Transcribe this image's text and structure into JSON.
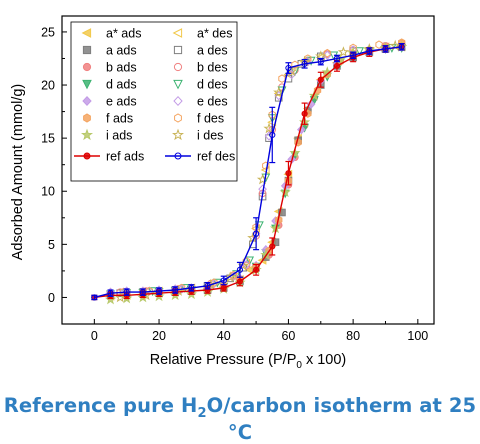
{
  "caption": {
    "prefix": "Reference pure H",
    "sub": "2",
    "suffix": "O/carbon isotherm at 25 °C",
    "color": "#2f7fc1"
  },
  "chart_data": {
    "type": "scatter",
    "xlabel_main": "Relative Pressure (P/P",
    "xlabel_sub": "0",
    "xlabel_end": " x 100)",
    "ylabel": "Adsorbed Amount (mmol/g)",
    "xlim": [
      -10,
      105
    ],
    "ylim": [
      -2.5,
      26.5
    ],
    "x_ticks": [
      0,
      20,
      40,
      60,
      80,
      100
    ],
    "y_ticks": [
      0,
      5,
      10,
      15,
      20,
      25
    ],
    "legend_position": "top-left",
    "series": [
      {
        "name": "a* ads",
        "marker": "tri-left",
        "filled": true,
        "color": "#f2c94c",
        "x": [
          5,
          10,
          15,
          20,
          25,
          30,
          35,
          40,
          45,
          48,
          52,
          55,
          57,
          60,
          63,
          66,
          70,
          75,
          80,
          85,
          90,
          95
        ],
        "y": [
          0.1,
          0.2,
          0.3,
          0.4,
          0.5,
          0.6,
          0.8,
          1.0,
          1.7,
          2.6,
          3.5,
          5.2,
          8.1,
          11.6,
          15.0,
          17.8,
          20.5,
          22.1,
          22.8,
          23.2,
          23.5,
          23.6
        ]
      },
      {
        "name": "a* des",
        "marker": "tri-left",
        "filled": false,
        "color": "#f2c94c",
        "x": [
          90,
          80,
          70,
          65,
          60,
          57,
          55,
          53,
          50,
          47,
          44,
          40,
          30,
          20,
          10
        ],
        "y": [
          23.6,
          23.2,
          22.6,
          22.2,
          21.0,
          19.2,
          16.5,
          12.0,
          6.5,
          3.2,
          2.0,
          1.4,
          0.9,
          0.6,
          0.4
        ]
      },
      {
        "name": "a ads",
        "marker": "square",
        "filled": true,
        "color": "#7f7f7f",
        "x": [
          5,
          10,
          15,
          20,
          25,
          30,
          35,
          40,
          45,
          50,
          53,
          56,
          58,
          60,
          63,
          66,
          70,
          75,
          80,
          85,
          90,
          95
        ],
        "y": [
          0.2,
          0.3,
          0.35,
          0.4,
          0.5,
          0.6,
          0.7,
          0.9,
          1.5,
          2.8,
          3.8,
          5.2,
          8.0,
          11.0,
          14.8,
          17.6,
          20.0,
          21.8,
          22.6,
          23.1,
          23.4,
          23.6
        ]
      },
      {
        "name": "a des",
        "marker": "square",
        "filled": false,
        "color": "#7f7f7f",
        "x": [
          90,
          80,
          70,
          64,
          60,
          57,
          54,
          52,
          49,
          46,
          42,
          35,
          25,
          15,
          8
        ],
        "y": [
          23.5,
          23.2,
          22.7,
          22.0,
          20.6,
          18.8,
          15.0,
          9.5,
          5.0,
          2.8,
          1.8,
          1.1,
          0.7,
          0.5,
          0.4
        ]
      },
      {
        "name": "b ads",
        "marker": "circle",
        "filled": true,
        "color": "#f08080",
        "x": [
          5,
          10,
          15,
          20,
          25,
          30,
          35,
          40,
          45,
          50,
          54,
          57,
          60,
          62,
          65,
          68,
          72,
          76,
          80,
          85,
          90,
          95
        ],
        "y": [
          0.4,
          0.5,
          0.5,
          0.6,
          0.7,
          0.8,
          0.9,
          1.1,
          1.6,
          2.7,
          4.0,
          6.8,
          10.6,
          13.2,
          16.2,
          18.8,
          21.0,
          22.3,
          22.9,
          23.3,
          23.5,
          23.7
        ]
      },
      {
        "name": "b des",
        "marker": "circle",
        "filled": false,
        "color": "#f08080",
        "x": [
          90,
          80,
          72,
          66,
          62,
          58,
          55,
          52,
          50,
          47,
          43,
          36,
          26,
          16,
          8
        ],
        "y": [
          23.7,
          23.3,
          22.9,
          22.3,
          21.4,
          19.8,
          15.8,
          9.8,
          5.8,
          3.0,
          2.0,
          1.3,
          0.8,
          0.6,
          0.5
        ]
      },
      {
        "name": "d ads",
        "marker": "tri-down",
        "filled": true,
        "color": "#3cb371",
        "x": [
          5,
          10,
          15,
          20,
          25,
          30,
          35,
          40,
          45,
          50,
          53,
          56,
          59,
          62,
          65,
          68,
          72,
          76,
          80,
          85,
          90,
          95
        ],
        "y": [
          0.3,
          0.4,
          0.45,
          0.5,
          0.6,
          0.7,
          0.8,
          1.0,
          1.6,
          2.9,
          4.2,
          6.5,
          9.8,
          13.4,
          16.0,
          18.6,
          20.8,
          22.1,
          22.8,
          23.2,
          23.4,
          23.5
        ]
      },
      {
        "name": "d des",
        "marker": "tri-down",
        "filled": false,
        "color": "#3cb371",
        "x": [
          92,
          82,
          74,
          67,
          62,
          58,
          55,
          53,
          51,
          48,
          44,
          38,
          28,
          18,
          9
        ],
        "y": [
          23.5,
          23.2,
          22.8,
          22.3,
          21.3,
          19.5,
          16.9,
          11.3,
          6.8,
          3.5,
          2.2,
          1.4,
          0.9,
          0.6,
          0.4
        ]
      },
      {
        "name": "e ads",
        "marker": "diamond",
        "filled": true,
        "color": "#c39be6",
        "x": [
          5,
          10,
          15,
          20,
          25,
          30,
          35,
          40,
          45,
          50,
          53,
          56,
          59,
          61,
          64,
          67,
          70,
          75,
          80,
          85,
          90,
          95
        ],
        "y": [
          0.5,
          0.6,
          0.6,
          0.7,
          0.8,
          0.9,
          1.0,
          1.2,
          1.8,
          3.0,
          4.5,
          7.2,
          10.5,
          13.0,
          15.8,
          18.2,
          20.4,
          22.0,
          22.7,
          23.1,
          23.4,
          23.6
        ]
      },
      {
        "name": "e des",
        "marker": "diamond",
        "filled": false,
        "color": "#c39be6",
        "x": [
          90,
          80,
          72,
          66,
          61,
          57,
          54,
          52,
          50,
          47,
          43,
          37,
          27,
          17,
          9
        ],
        "y": [
          23.6,
          23.3,
          22.8,
          22.2,
          21.0,
          19.0,
          15.2,
          10.2,
          6.0,
          3.1,
          2.0,
          1.3,
          0.8,
          0.6,
          0.5
        ]
      },
      {
        "name": "f ads",
        "marker": "hexagon",
        "filled": true,
        "color": "#f4a460",
        "x": [
          5,
          10,
          15,
          20,
          25,
          30,
          35,
          40,
          45,
          50,
          54,
          57,
          60,
          63,
          66,
          69,
          72,
          76,
          80,
          85,
          90,
          95
        ],
        "y": [
          0.3,
          0.4,
          0.5,
          0.5,
          0.6,
          0.7,
          0.9,
          1.1,
          1.7,
          2.9,
          4.4,
          7.3,
          11.0,
          14.6,
          17.3,
          19.5,
          21.0,
          22.2,
          22.8,
          23.3,
          23.6,
          23.9
        ]
      },
      {
        "name": "f des",
        "marker": "hexagon",
        "filled": false,
        "color": "#f4a460",
        "x": [
          95,
          88,
          80,
          72,
          66,
          62,
          58,
          55,
          53,
          50,
          47,
          43,
          37,
          27,
          17,
          9
        ],
        "y": [
          24.0,
          23.8,
          23.5,
          23.0,
          22.5,
          21.9,
          20.6,
          17.2,
          12.4,
          6.6,
          3.4,
          2.1,
          1.4,
          0.9,
          0.6,
          0.5
        ]
      },
      {
        "name": "i ads",
        "marker": "star",
        "filled": true,
        "color": "#b8c96a",
        "x": [
          5,
          10,
          15,
          20,
          25,
          30,
          35,
          40,
          45,
          50,
          53,
          56,
          59,
          62,
          65,
          68,
          72,
          76,
          80,
          85,
          90,
          95
        ],
        "y": [
          -0.2,
          -0.1,
          0.0,
          0.1,
          0.2,
          0.3,
          0.5,
          0.8,
          1.4,
          2.6,
          4.0,
          6.5,
          9.9,
          13.6,
          16.5,
          19.0,
          21.2,
          22.4,
          23.0,
          23.3,
          23.5,
          23.6
        ]
      },
      {
        "name": "i des",
        "marker": "star",
        "filled": false,
        "color": "#c9b458",
        "x": [
          93,
          85,
          77,
          70,
          65,
          61,
          57,
          54,
          52,
          49,
          46,
          42,
          36,
          26,
          16,
          8
        ],
        "y": [
          23.7,
          23.4,
          23.1,
          22.7,
          22.2,
          21.3,
          19.3,
          15.9,
          11.1,
          5.6,
          3.0,
          1.9,
          1.2,
          0.6,
          0.2,
          0.0
        ]
      },
      {
        "name": "ref ads",
        "marker": "circle",
        "filled": true,
        "color": "#dd0000",
        "line": true,
        "x": [
          0,
          5,
          10,
          15,
          20,
          25,
          30,
          35,
          40,
          45,
          50,
          55,
          60,
          65,
          70,
          75,
          80,
          85,
          90,
          95
        ],
        "y": [
          0.0,
          0.2,
          0.2,
          0.3,
          0.4,
          0.5,
          0.6,
          0.7,
          0.9,
          1.5,
          2.6,
          4.8,
          11.7,
          17.3,
          20.5,
          21.8,
          22.6,
          23.1,
          23.4,
          23.6
        ],
        "err": [
          0.2,
          0.3,
          0.3,
          0.3,
          0.3,
          0.3,
          0.3,
          0.3,
          0.3,
          0.4,
          0.5,
          0.8,
          1.1,
          1.0,
          0.7,
          0.5,
          0.4,
          0.4,
          0.3,
          0.3
        ]
      },
      {
        "name": "ref des",
        "marker": "circle",
        "filled": false,
        "color": "#0000dd",
        "line": true,
        "x": [
          95,
          90,
          85,
          80,
          75,
          70,
          65,
          60,
          55,
          50,
          45,
          40,
          35,
          30,
          25,
          20,
          15,
          10,
          5,
          0
        ],
        "y": [
          23.6,
          23.4,
          23.2,
          22.8,
          22.5,
          22.2,
          22.0,
          21.6,
          15.3,
          6.0,
          2.6,
          1.6,
          1.1,
          0.9,
          0.7,
          0.6,
          0.5,
          0.5,
          0.4,
          0.0
        ],
        "err": [
          0.3,
          0.3,
          0.3,
          0.3,
          0.3,
          0.3,
          0.4,
          0.5,
          2.6,
          1.5,
          0.7,
          0.4,
          0.3,
          0.3,
          0.3,
          0.3,
          0.3,
          0.3,
          0.3,
          0.2
        ]
      }
    ]
  }
}
